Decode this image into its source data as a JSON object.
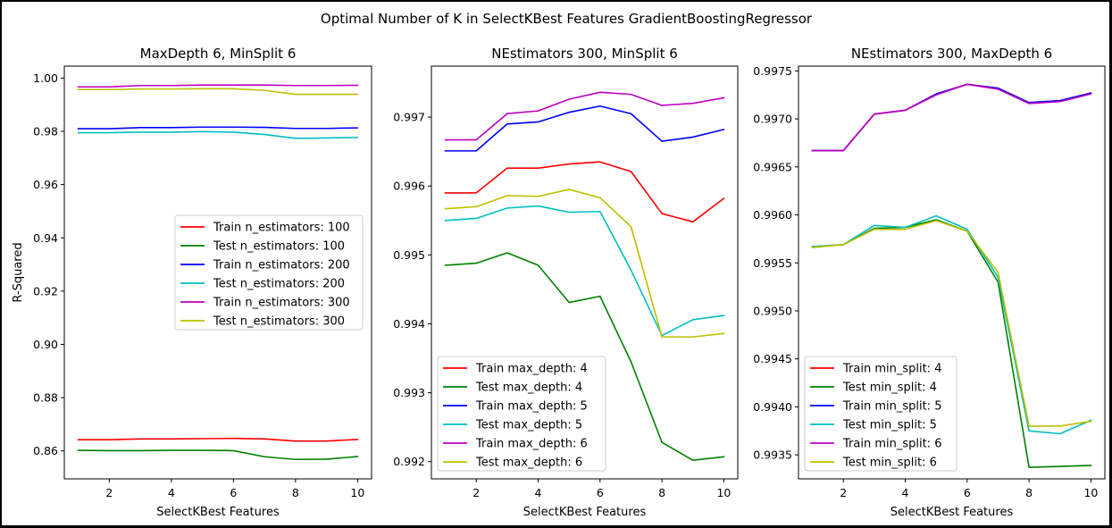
{
  "figure": {
    "title": "Optimal Number of K in SelectKBest Features GradientBoostingRegressor"
  },
  "chart_data": [
    {
      "type": "line",
      "title": "MaxDepth 6, MinSplit 6",
      "xlabel": "SelectKBest Features",
      "ylabel": "R-Squared",
      "xlim": [
        0.55,
        10.45
      ],
      "ylim": [
        0.8495,
        1.0045
      ],
      "x_ticks": [
        2,
        4,
        6,
        8,
        10
      ],
      "y_ticks": [
        0.86,
        0.88,
        0.9,
        0.92,
        0.94,
        0.96,
        0.98,
        1.0
      ],
      "y_tick_labels": [
        "0.86",
        "0.88",
        "0.90",
        "0.92",
        "0.94",
        "0.96",
        "0.98",
        "1.00"
      ],
      "legend": "center-right",
      "x": [
        1,
        2,
        3,
        4,
        5,
        6,
        7,
        8,
        9,
        10
      ],
      "series": [
        {
          "name": "Train n_estimators: 100",
          "color": "#ff0000",
          "values": [
            0.8642,
            0.8642,
            0.8645,
            0.8645,
            0.8646,
            0.8647,
            0.8645,
            0.8637,
            0.8637,
            0.8643
          ]
        },
        {
          "name": "Test n_estimators: 100",
          "color": "#008000",
          "values": [
            0.8602,
            0.8601,
            0.8601,
            0.8602,
            0.8602,
            0.8601,
            0.8578,
            0.8568,
            0.8569,
            0.8579
          ]
        },
        {
          "name": "Train n_estimators: 200",
          "color": "#0000ff",
          "values": [
            0.981,
            0.981,
            0.9814,
            0.9814,
            0.9816,
            0.9816,
            0.9815,
            0.9811,
            0.9811,
            0.9813
          ]
        },
        {
          "name": "Test n_estimators: 200",
          "color": "#00bfbf",
          "values": [
            0.9795,
            0.9795,
            0.9797,
            0.9797,
            0.9799,
            0.9797,
            0.9788,
            0.9774,
            0.9775,
            0.9777
          ]
        },
        {
          "name": "Train n_estimators: 300",
          "color": "#bf00bf",
          "values": [
            0.9967,
            0.9967,
            0.9972,
            0.9972,
            0.9974,
            0.9974,
            0.9974,
            0.9972,
            0.9972,
            0.9973
          ]
        },
        {
          "name": "Test n_estimators: 300",
          "color": "#bfbf00",
          "values": [
            0.9957,
            0.9957,
            0.9959,
            0.9959,
            0.996,
            0.996,
            0.9954,
            0.9939,
            0.9939,
            0.9939
          ]
        }
      ]
    },
    {
      "type": "line",
      "title": "NEstimators 300, MinSplit 6",
      "xlabel": "SelectKBest Features",
      "ylabel": "",
      "xlim": [
        0.55,
        10.45
      ],
      "ylim": [
        0.99175,
        0.99774
      ],
      "x_ticks": [
        2,
        4,
        6,
        8,
        10
      ],
      "y_ticks": [
        0.992,
        0.993,
        0.994,
        0.995,
        0.996,
        0.997
      ],
      "y_tick_labels": [
        "0.992",
        "0.993",
        "0.994",
        "0.995",
        "0.996",
        "0.997"
      ],
      "legend": "lower-left",
      "x": [
        1,
        2,
        3,
        4,
        5,
        6,
        7,
        8,
        9,
        10
      ],
      "series": [
        {
          "name": "Train max_depth: 4",
          "color": "#ff0000",
          "values": [
            0.9959,
            0.9959,
            0.99626,
            0.99626,
            0.99632,
            0.99635,
            0.99621,
            0.9956,
            0.99548,
            0.99582
          ]
        },
        {
          "name": "Test max_depth: 4",
          "color": "#008000",
          "values": [
            0.99485,
            0.99488,
            0.99503,
            0.99485,
            0.99431,
            0.9944,
            0.99345,
            0.99228,
            0.99202,
            0.99207
          ]
        },
        {
          "name": "Train max_depth: 5",
          "color": "#0000ff",
          "values": [
            0.99651,
            0.99651,
            0.9969,
            0.99693,
            0.99707,
            0.99716,
            0.99705,
            0.99665,
            0.99671,
            0.99682
          ]
        },
        {
          "name": "Test max_depth: 5",
          "color": "#00bfbf",
          "values": [
            0.9955,
            0.99553,
            0.99568,
            0.99571,
            0.99562,
            0.99563,
            0.99478,
            0.99383,
            0.99406,
            0.99412
          ]
        },
        {
          "name": "Train max_depth: 6",
          "color": "#bf00bf",
          "values": [
            0.99667,
            0.99667,
            0.99705,
            0.99709,
            0.99726,
            0.99736,
            0.99733,
            0.99717,
            0.9972,
            0.99728
          ]
        },
        {
          "name": "Test max_depth: 6",
          "color": "#bfbf00",
          "values": [
            0.99567,
            0.9957,
            0.99586,
            0.99585,
            0.99595,
            0.99583,
            0.99541,
            0.99381,
            0.99381,
            0.99386
          ]
        }
      ]
    },
    {
      "type": "line",
      "title": "NEstimators 300, MaxDepth 6",
      "xlabel": "SelectKBest Features",
      "ylabel": "",
      "xlim": [
        0.55,
        10.45
      ],
      "ylim": [
        0.99325,
        0.99755
      ],
      "x_ticks": [
        2,
        4,
        6,
        8,
        10
      ],
      "y_ticks": [
        0.9935,
        0.994,
        0.9945,
        0.995,
        0.9955,
        0.996,
        0.9965,
        0.997,
        0.9975
      ],
      "y_tick_labels": [
        "0.9935",
        "0.9940",
        "0.9945",
        "0.9950",
        "0.9955",
        "0.9960",
        "0.9965",
        "0.9970",
        "0.9975"
      ],
      "legend": "lower-left",
      "x": [
        1,
        2,
        3,
        4,
        5,
        6,
        7,
        8,
        9,
        10
      ],
      "series": [
        {
          "name": "Train min_split: 4",
          "color": "#ff0000",
          "values": [
            0.99667,
            0.99667,
            0.99705,
            0.99709,
            0.99726,
            0.99736,
            0.99732,
            0.99717,
            0.99719,
            0.99727
          ]
        },
        {
          "name": "Test min_split: 4",
          "color": "#008000",
          "values": [
            0.99567,
            0.99569,
            0.99586,
            0.99587,
            0.99595,
            0.99583,
            0.9953,
            0.99337,
            0.99338,
            0.99339
          ]
        },
        {
          "name": "Train min_split: 5",
          "color": "#0000ff",
          "values": [
            0.99667,
            0.99667,
            0.99705,
            0.99709,
            0.99726,
            0.99736,
            0.99732,
            0.99717,
            0.99719,
            0.99727
          ]
        },
        {
          "name": "Test min_split: 5",
          "color": "#00bfbf",
          "values": [
            0.99567,
            0.99569,
            0.99589,
            0.99587,
            0.99599,
            0.99585,
            0.99535,
            0.99375,
            0.99372,
            0.99386
          ]
        },
        {
          "name": "Train min_split: 6",
          "color": "#bf00bf",
          "values": [
            0.99667,
            0.99667,
            0.99705,
            0.99709,
            0.99725,
            0.99736,
            0.99731,
            0.99716,
            0.99718,
            0.99726
          ]
        },
        {
          "name": "Test min_split: 6",
          "color": "#bfbf00",
          "values": [
            0.99566,
            0.99569,
            0.99585,
            0.99585,
            0.99594,
            0.99583,
            0.9954,
            0.9938,
            0.9938,
            0.99385
          ]
        }
      ]
    }
  ]
}
